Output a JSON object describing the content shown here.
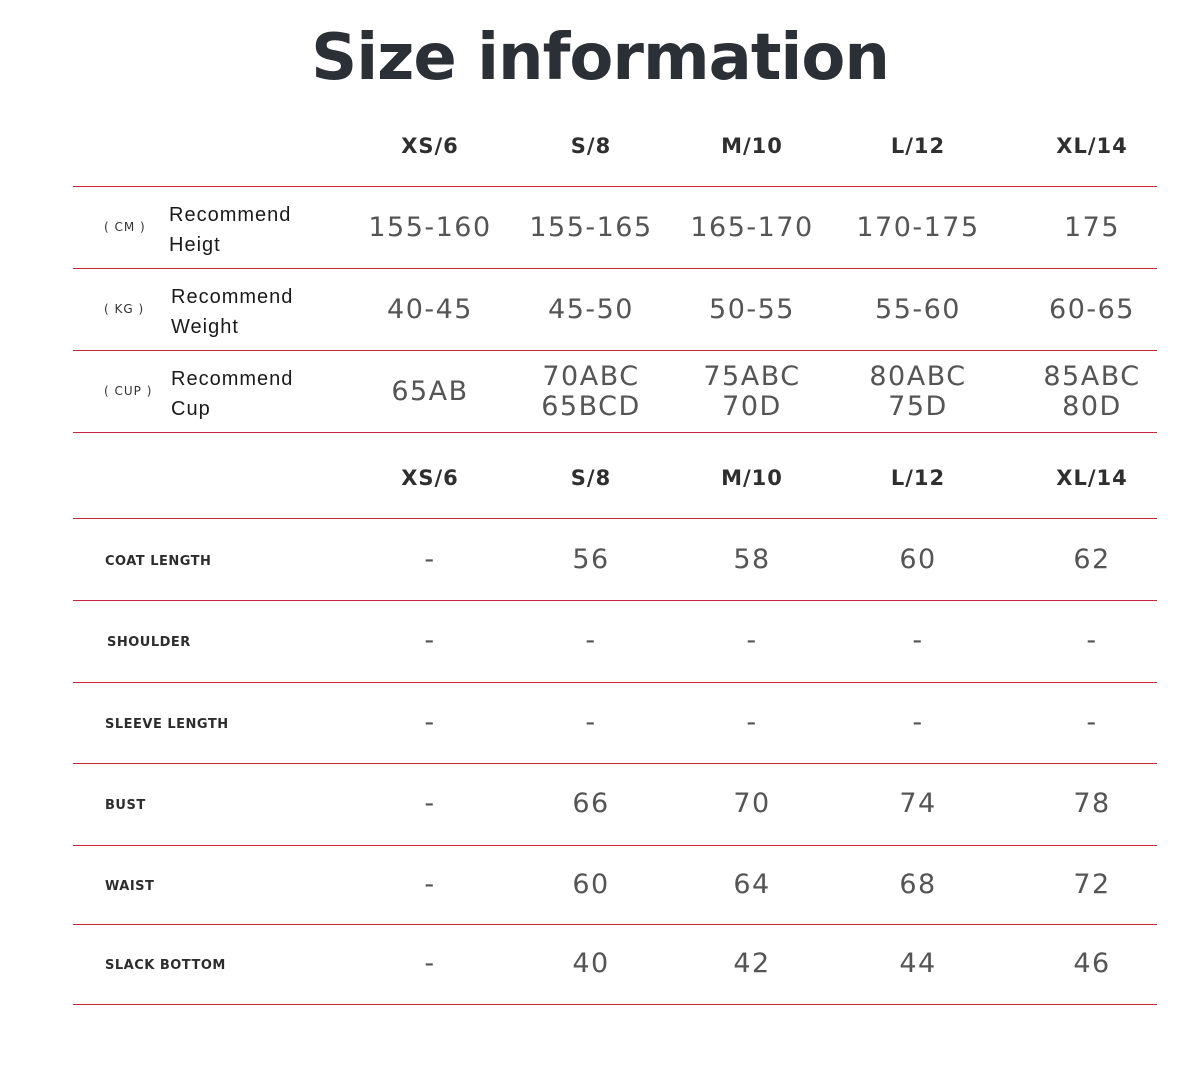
{
  "title": "Size information",
  "sizes": [
    "XS/6",
    "S/8",
    "M/10",
    "L/12",
    "XL/14"
  ],
  "recommend_rows": [
    {
      "unit": "( CM )",
      "label_line1": "Recommend",
      "label_line2": "Heigt",
      "values": [
        [
          "155-160"
        ],
        [
          "155-165"
        ],
        [
          "165-170"
        ],
        [
          "170-175"
        ],
        [
          "175"
        ]
      ]
    },
    {
      "unit": "( KG )",
      "label_line1": "Recommend",
      "label_line2": "Weight",
      "values": [
        [
          "40-45"
        ],
        [
          "45-50"
        ],
        [
          "50-55"
        ],
        [
          "55-60"
        ],
        [
          "60-65"
        ]
      ]
    },
    {
      "unit": "( CUP )",
      "label_line1": "Recommend",
      "label_line2": "Cup",
      "values": [
        [
          "65AB"
        ],
        [
          "70ABC",
          "65BCD"
        ],
        [
          "75ABC",
          "70D"
        ],
        [
          "80ABC",
          "75D"
        ],
        [
          "85ABC",
          "80D"
        ]
      ]
    }
  ],
  "measure_rows": [
    {
      "label": "COAT LENGTH",
      "values": [
        "-",
        "56",
        "58",
        "60",
        "62"
      ]
    },
    {
      "label": "SHOULDER",
      "values": [
        "-",
        "-",
        "-",
        "-",
        "-"
      ]
    },
    {
      "label": "SLEEVE LENGTH",
      "values": [
        "-",
        "-",
        "-",
        "-",
        "-"
      ]
    },
    {
      "label": "BUST",
      "values": [
        "-",
        "66",
        "70",
        "74",
        "78"
      ]
    },
    {
      "label": "WAIST",
      "values": [
        "-",
        "60",
        "64",
        "68",
        "72"
      ]
    },
    {
      "label": "SLACK BOTTOM",
      "values": [
        "-",
        "40",
        "42",
        "44",
        "46"
      ]
    }
  ],
  "colors": {
    "rule": "#c8283c",
    "title": "#2b2f36"
  }
}
